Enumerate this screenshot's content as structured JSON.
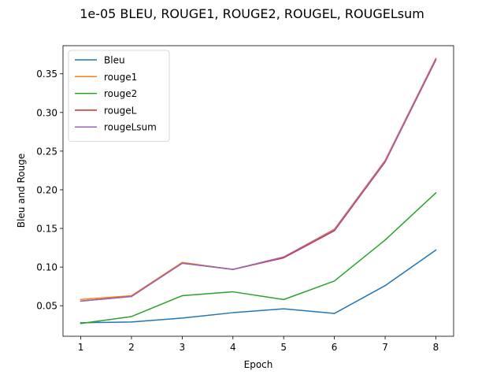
{
  "chart_data": {
    "type": "line",
    "title": "1e-05 BLEU, ROUGE1, ROUGE2, ROUGEL, ROUGELsum",
    "xlabel": "Epoch",
    "ylabel": "Bleu and Rouge",
    "xlim": [
      0.65,
      8.35
    ],
    "ylim": [
      0.0105,
      0.3864
    ],
    "x": [
      1,
      2,
      3,
      4,
      5,
      6,
      7,
      8
    ],
    "xticks": [
      1,
      2,
      3,
      4,
      5,
      6,
      7,
      8
    ],
    "yticks": [
      0.05,
      0.1,
      0.15,
      0.2,
      0.25,
      0.3,
      0.35
    ],
    "ytick_labels": [
      "0.05",
      "0.10",
      "0.15",
      "0.20",
      "0.25",
      "0.30",
      "0.35"
    ],
    "grid": false,
    "legend_position": "top-left",
    "series": [
      {
        "name": "Bleu",
        "color": "#1f77b4",
        "values": [
          0.028,
          0.029,
          0.034,
          0.041,
          0.046,
          0.04,
          0.076,
          0.122
        ]
      },
      {
        "name": "rouge1",
        "color": "#ff7f0e",
        "values": [
          0.058,
          0.063,
          0.106,
          0.097,
          0.113,
          0.149,
          0.238,
          0.37
        ]
      },
      {
        "name": "rouge2",
        "color": "#2ca02c",
        "values": [
          0.027,
          0.036,
          0.063,
          0.068,
          0.058,
          0.082,
          0.135,
          0.196
        ]
      },
      {
        "name": "rougeL",
        "color": "#d62728",
        "values": [
          0.056,
          0.062,
          0.105,
          0.097,
          0.112,
          0.147,
          0.236,
          0.368
        ]
      },
      {
        "name": "rougeLsum",
        "color": "#9467bd",
        "values": [
          0.056,
          0.062,
          0.105,
          0.097,
          0.113,
          0.148,
          0.237,
          0.369
        ]
      }
    ]
  }
}
